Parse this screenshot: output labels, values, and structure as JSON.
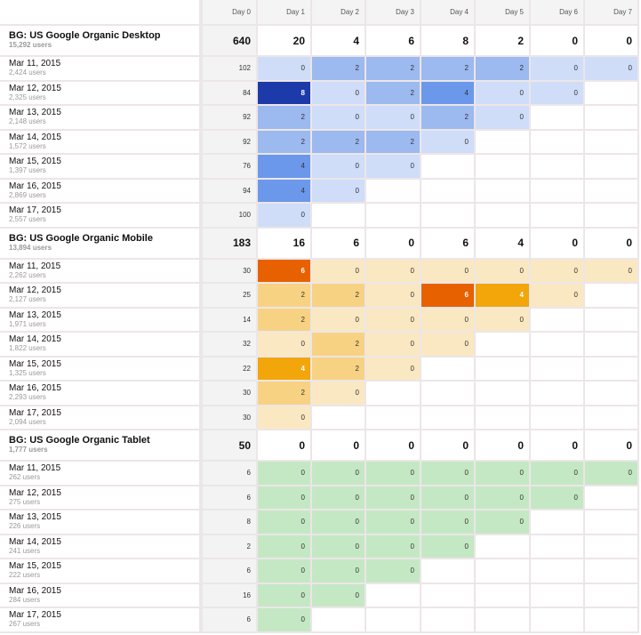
{
  "columns": [
    "Day 0",
    "Day 1",
    "Day 2",
    "Day 3",
    "Day 4",
    "Day 5",
    "Day 6",
    "Day 7"
  ],
  "palettes": {
    "blue": {
      "0": "#cfddf8",
      "2": "#9cb9f0",
      "4": "#6b98ea",
      "8": "#1c3aa9"
    },
    "orange": {
      "0": "#fae8c2",
      "2": "#f8d283",
      "4": "#f2a60a",
      "6": "#e86100"
    },
    "green": {
      "0": "#c5e8c4"
    }
  },
  "segments": [
    {
      "name": "BG: US Google Organic Desktop",
      "users": "15,292 users",
      "palette": "blue",
      "totals": [
        "640",
        "20",
        "4",
        "6",
        "8",
        "2",
        "0",
        "0"
      ],
      "rows": [
        {
          "date": "Mar 11, 2015",
          "users": "2,424 users",
          "values": [
            "102",
            "0",
            "2",
            "2",
            "2",
            "2",
            "0",
            "0"
          ]
        },
        {
          "date": "Mar 12, 2015",
          "users": "2,325 users",
          "values": [
            "84",
            "8",
            "0",
            "2",
            "4",
            "0",
            "0"
          ]
        },
        {
          "date": "Mar 13, 2015",
          "users": "2,148 users",
          "values": [
            "92",
            "2",
            "0",
            "0",
            "2",
            "0"
          ]
        },
        {
          "date": "Mar 14, 2015",
          "users": "1,572 users",
          "values": [
            "92",
            "2",
            "2",
            "2",
            "0"
          ]
        },
        {
          "date": "Mar 15, 2015",
          "users": "1,397 users",
          "values": [
            "76",
            "4",
            "0",
            "0"
          ]
        },
        {
          "date": "Mar 16, 2015",
          "users": "2,869 users",
          "values": [
            "94",
            "4",
            "0"
          ]
        },
        {
          "date": "Mar 17, 2015",
          "users": "2,557 users",
          "values": [
            "100",
            "0"
          ]
        }
      ]
    },
    {
      "name": "BG: US Google Organic Mobile",
      "users": "13,894 users",
      "palette": "orange",
      "totals": [
        "183",
        "16",
        "6",
        "0",
        "6",
        "4",
        "0",
        "0"
      ],
      "rows": [
        {
          "date": "Mar 11, 2015",
          "users": "2,262 users",
          "values": [
            "30",
            "6",
            "0",
            "0",
            "0",
            "0",
            "0",
            "0"
          ]
        },
        {
          "date": "Mar 12, 2015",
          "users": "2,127 users",
          "values": [
            "25",
            "2",
            "2",
            "0",
            "6",
            "4",
            "0"
          ]
        },
        {
          "date": "Mar 13, 2015",
          "users": "1,971 users",
          "values": [
            "14",
            "2",
            "0",
            "0",
            "0",
            "0"
          ]
        },
        {
          "date": "Mar 14, 2015",
          "users": "1,822 users",
          "values": [
            "32",
            "0",
            "2",
            "0",
            "0"
          ]
        },
        {
          "date": "Mar 15, 2015",
          "users": "1,325 users",
          "values": [
            "22",
            "4",
            "2",
            "0"
          ]
        },
        {
          "date": "Mar 16, 2015",
          "users": "2,293 users",
          "values": [
            "30",
            "2",
            "0"
          ]
        },
        {
          "date": "Mar 17, 2015",
          "users": "2,094 users",
          "values": [
            "30",
            "0"
          ]
        }
      ]
    },
    {
      "name": "BG: US Google Organic Tablet",
      "users": "1,777 users",
      "palette": "green",
      "totals": [
        "50",
        "0",
        "0",
        "0",
        "0",
        "0",
        "0",
        "0"
      ],
      "rows": [
        {
          "date": "Mar 11, 2015",
          "users": "262 users",
          "values": [
            "6",
            "0",
            "0",
            "0",
            "0",
            "0",
            "0",
            "0"
          ]
        },
        {
          "date": "Mar 12, 2015",
          "users": "275 users",
          "values": [
            "6",
            "0",
            "0",
            "0",
            "0",
            "0",
            "0"
          ]
        },
        {
          "date": "Mar 13, 2015",
          "users": "226 users",
          "values": [
            "8",
            "0",
            "0",
            "0",
            "0",
            "0"
          ]
        },
        {
          "date": "Mar 14, 2015",
          "users": "241 users",
          "values": [
            "2",
            "0",
            "0",
            "0",
            "0"
          ]
        },
        {
          "date": "Mar 15, 2015",
          "users": "222 users",
          "values": [
            "6",
            "0",
            "0",
            "0"
          ]
        },
        {
          "date": "Mar 16, 2015",
          "users": "284 users",
          "values": [
            "16",
            "0",
            "0"
          ]
        },
        {
          "date": "Mar 17, 2015",
          "users": "267 users",
          "values": [
            "6",
            "0"
          ]
        }
      ]
    }
  ]
}
